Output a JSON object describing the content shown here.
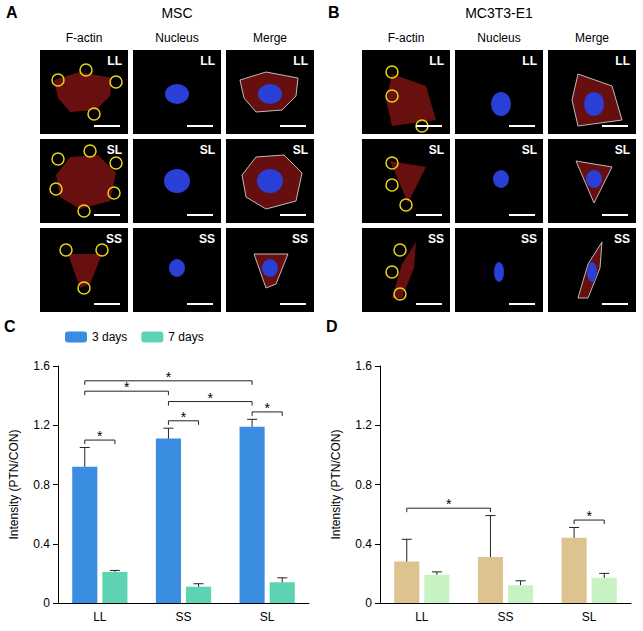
{
  "image_panels": [
    {
      "label": "A",
      "title": "MSC",
      "columns": [
        "F-actin",
        "Nucleus",
        "Merge"
      ],
      "rows": [
        "LL",
        "SL",
        "SS"
      ]
    },
    {
      "label": "B",
      "title": "MC3T3-E1",
      "columns": [
        "F-actin",
        "Nucleus",
        "Merge"
      ],
      "rows": [
        "LL",
        "SL",
        "SS"
      ]
    }
  ],
  "chart_data": [
    {
      "panel_label": "C",
      "type": "bar",
      "y_label": "Intensity (PTN/CON)",
      "categories": [
        "LL",
        "SS",
        "SL"
      ],
      "series": [
        {
          "name": "3 days",
          "color": "#3a8de0",
          "values": [
            0.92,
            1.11,
            1.19
          ],
          "errors": [
            0.13,
            0.07,
            0.05
          ]
        },
        {
          "name": "7 days",
          "color": "#5ed3b4",
          "values": [
            0.21,
            0.11,
            0.14
          ],
          "errors": [
            0.01,
            0.02,
            0.03
          ]
        }
      ],
      "ylim": [
        0,
        1.6
      ],
      "yticks": [
        0,
        0.4,
        0.8,
        1.2,
        1.6
      ],
      "grid": false,
      "legend": "top",
      "annotations": [
        {
          "text": "*",
          "from": {
            "category": "LL",
            "series": 0
          },
          "to": {
            "category": "LL",
            "series": 1
          }
        },
        {
          "text": "*",
          "from": {
            "category": "SS",
            "series": 0
          },
          "to": {
            "category": "SS",
            "series": 1
          }
        },
        {
          "text": "*",
          "from": {
            "category": "SL",
            "series": 0
          },
          "to": {
            "category": "SL",
            "series": 1
          }
        },
        {
          "text": "*",
          "from": {
            "category": "SS",
            "series": 0
          },
          "to": {
            "category": "SL",
            "series": 0
          }
        },
        {
          "text": "*",
          "from": {
            "category": "LL",
            "series": 0
          },
          "to": {
            "category": "SS",
            "series": 0
          }
        },
        {
          "text": "*",
          "from": {
            "category": "LL",
            "series": 0
          },
          "to": {
            "category": "SL",
            "series": 0
          }
        }
      ]
    },
    {
      "panel_label": "D",
      "type": "bar",
      "y_label": "Intensity (PTN/CON)",
      "categories": [
        "LL",
        "SS",
        "SL"
      ],
      "series": [
        {
          "color": "#dcc38f",
          "values": [
            0.28,
            0.31,
            0.44
          ],
          "errors": [
            0.15,
            0.28,
            0.07
          ]
        },
        {
          "color": "#c6f2c4",
          "values": [
            0.19,
            0.12,
            0.17
          ],
          "errors": [
            0.02,
            0.03,
            0.03
          ]
        }
      ],
      "ylim": [
        0,
        1.6
      ],
      "yticks": [
        0,
        0.4,
        0.8,
        1.2,
        1.6
      ],
      "grid": false,
      "annotations": [
        {
          "text": "*",
          "from": {
            "category": "SL",
            "series": 0
          },
          "to": {
            "category": "SL",
            "series": 1
          }
        },
        {
          "text": "*",
          "from": {
            "category": "LL",
            "series": 0
          },
          "to": {
            "category": "SS",
            "series": 0
          }
        }
      ]
    }
  ]
}
